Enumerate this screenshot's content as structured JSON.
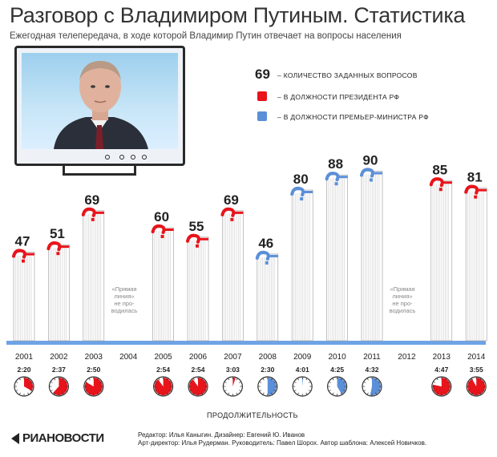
{
  "header": {
    "title": "Разговор с Владимиром Путиным. Статистика",
    "subtitle": "Ежегодная телепередача, в ходе которой Владимир Путин отвечает на вопросы населения"
  },
  "legend": {
    "number_sample": "69",
    "count_label": "– КОЛИЧЕСТВО ЗАДАННЫХ ВОПРОСОВ",
    "president_label": "– В ДОЛЖНОСТИ ПРЕЗИДЕНТА РФ",
    "premier_label": "– В ДОЛЖНОСТИ ПРЕМЬЕР-МИНИСТРА РФ"
  },
  "colors": {
    "president": "#e8141b",
    "premier": "#5b8fd8",
    "baseline": "#6ea3e6"
  },
  "no_broadcast_note": {
    "line1": "«Прямая",
    "line2": "линия»",
    "line3": "не про-",
    "line4": "водилась"
  },
  "duration_label": "ПРОДОЛЖИТЕЛЬНОСТЬ",
  "credits": {
    "line1": "Редактор: Илья Каныгин. Дизайнер: Евгений Ю. Иванов",
    "line2": "Арт-директор: Илья Рудерман. Руководитель: Павел Шорох. Автор шаблона: Алексей Новичков."
  },
  "logo": "РИАНОВОСТИ",
  "chart_data": {
    "type": "bar",
    "title": "Разговор с Владимиром Путиным. Статистика",
    "categories": [
      "2001",
      "2002",
      "2003",
      "2004",
      "2005",
      "2006",
      "2007",
      "2008",
      "2009",
      "2010",
      "2011",
      "2012",
      "2013",
      "2014"
    ],
    "series": [
      {
        "name": "Количество заданных вопросов",
        "values": [
          47,
          51,
          69,
          null,
          60,
          55,
          69,
          46,
          80,
          88,
          90,
          null,
          85,
          81
        ]
      }
    ],
    "roles": [
      "president",
      "president",
      "president",
      null,
      "president",
      "president",
      "president",
      "premier",
      "premier",
      "premier",
      "premier",
      null,
      "president",
      "president"
    ],
    "durations": [
      "2:20",
      "2:37",
      "2:50",
      null,
      "2:54",
      "2:54",
      "3:03",
      "2:30",
      "4:01",
      "4:25",
      "4:32",
      null,
      "4:47",
      "3:55"
    ],
    "duration_minutes": [
      140,
      157,
      170,
      null,
      174,
      174,
      183,
      150,
      241,
      265,
      272,
      null,
      287,
      235
    ]
  }
}
